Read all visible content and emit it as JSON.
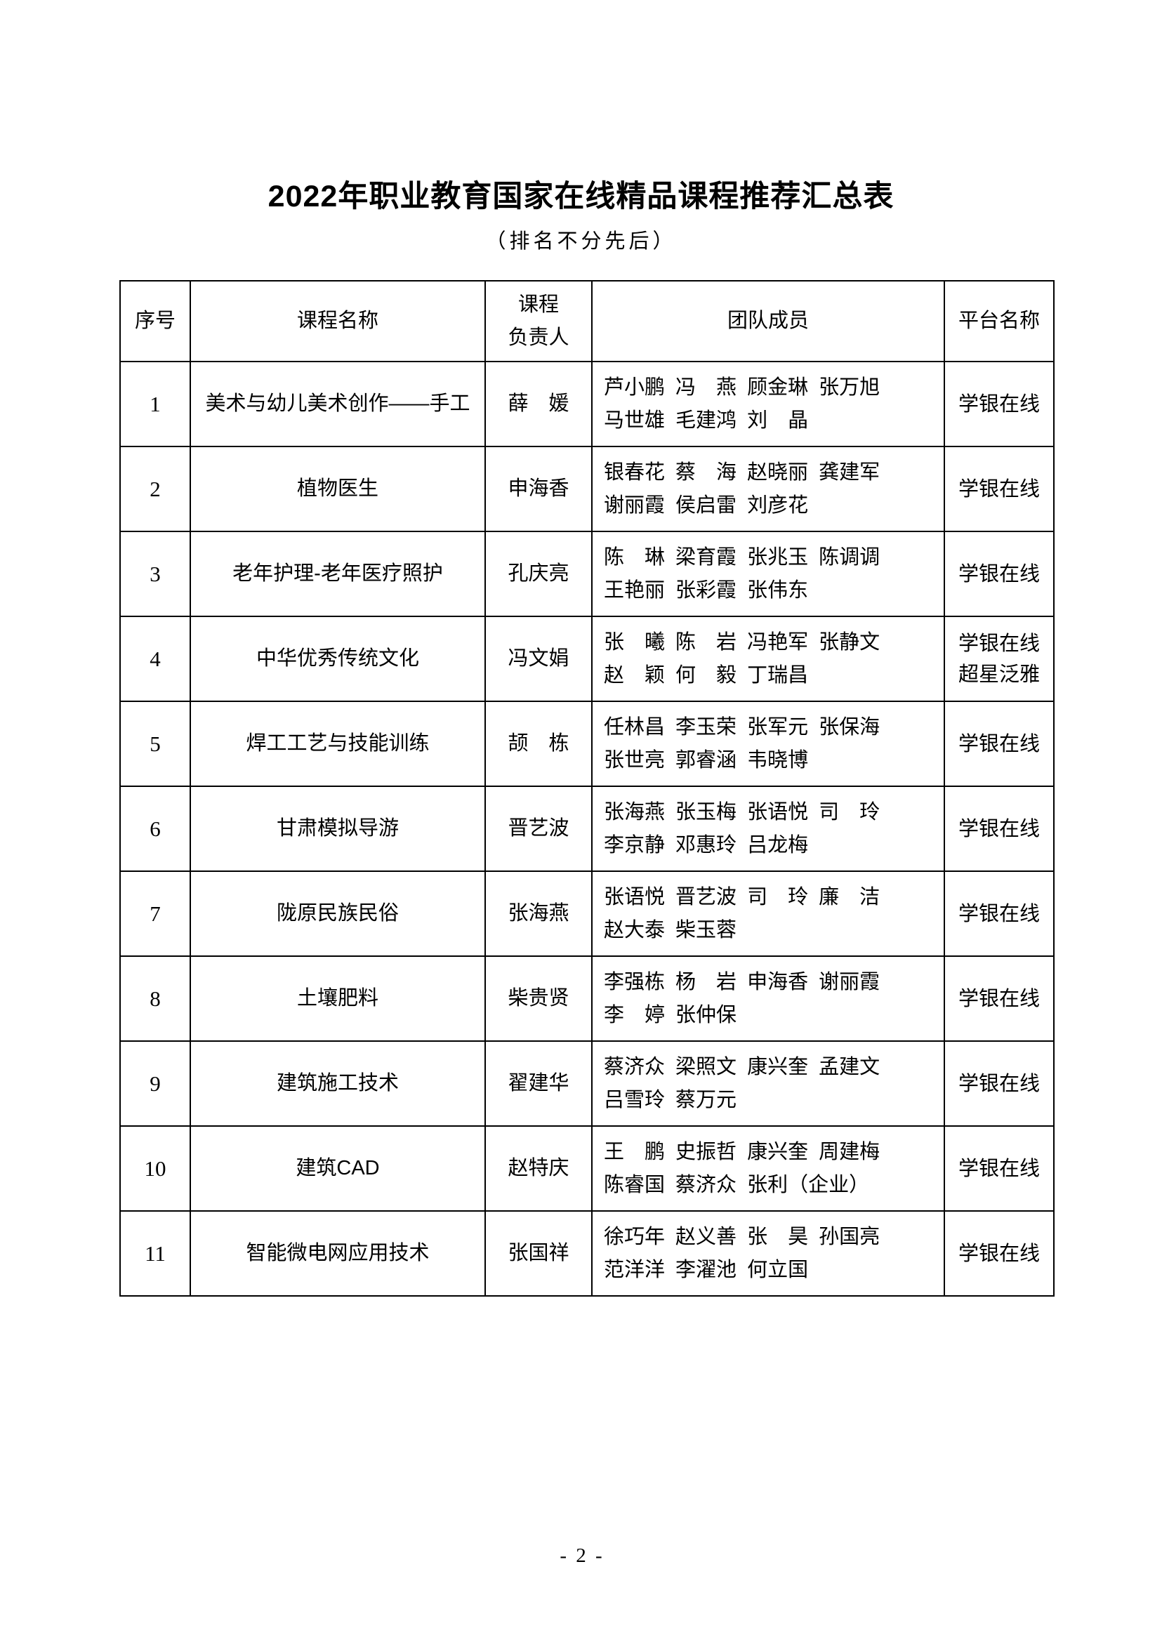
{
  "page": {
    "title": "2022年职业教育国家在线精品课程推荐汇总表",
    "subtitle": "（排名不分先后）",
    "footer": "- 2 -"
  },
  "table": {
    "headers": {
      "num": "序号",
      "course": "课程名称",
      "leader": "课程\n负责人",
      "team": "团队成员",
      "platform": "平台名称"
    },
    "rows": [
      {
        "num": "1",
        "course": "美术与幼儿美术创作——手工",
        "leader": "薛　媛",
        "team": "芦小鹏 冯　燕 顾金琳 张万旭\n马世雄 毛建鸿 刘　晶",
        "platform": "学银在线"
      },
      {
        "num": "2",
        "course": "植物医生",
        "leader": "申海香",
        "team": "银春花 蔡　海 赵晓丽 龚建军\n谢丽霞 侯启雷 刘彦花",
        "platform": "学银在线"
      },
      {
        "num": "3",
        "course": "老年护理-老年医疗照护",
        "leader": "孔庆亮",
        "team": "陈　琳 梁育霞 张兆玉 陈调调\n王艳丽 张彩霞 张伟东",
        "platform": "学银在线"
      },
      {
        "num": "4",
        "course": "中华优秀传统文化",
        "leader": "冯文娟",
        "team": "张　曦 陈　岩 冯艳军 张静文\n赵　颖 何　毅 丁瑞昌",
        "platform": "学银在线\n超星泛雅"
      },
      {
        "num": "5",
        "course": "焊工工艺与技能训练",
        "leader": "颉　栋",
        "team": "任林昌 李玉荣 张军元 张保海\n张世亮 郭睿涵 韦晓博",
        "platform": "学银在线"
      },
      {
        "num": "6",
        "course": "甘肃模拟导游",
        "leader": "晋艺波",
        "team": "张海燕 张玉梅 张语悦 司　玲\n李京静 邓惠玲 吕龙梅",
        "platform": "学银在线"
      },
      {
        "num": "7",
        "course": "陇原民族民俗",
        "leader": "张海燕",
        "team": "张语悦 晋艺波 司　玲 廉　洁\n赵大泰 柴玉蓉",
        "platform": "学银在线"
      },
      {
        "num": "8",
        "course": "土壤肥料",
        "leader": "柴贵贤",
        "team": "李强栋 杨　岩 申海香 谢丽霞\n李　婷 张仲保",
        "platform": "学银在线"
      },
      {
        "num": "9",
        "course": "建筑施工技术",
        "leader": "翟建华",
        "team": "蔡济众 梁照文 康兴奎 孟建文\n吕雪玲 蔡万元",
        "platform": "学银在线"
      },
      {
        "num": "10",
        "course": "建筑CAD",
        "leader": "赵特庆",
        "team": "王　鹏 史振哲 康兴奎 周建梅\n陈睿国 蔡济众 张利（企业）",
        "platform": "学银在线"
      },
      {
        "num": "11",
        "course": "智能微电网应用技术",
        "leader": "张国祥",
        "team": "徐巧年 赵义善 张　昊 孙国亮\n范洋洋 李濯池 何立国",
        "platform": "学银在线"
      }
    ]
  }
}
